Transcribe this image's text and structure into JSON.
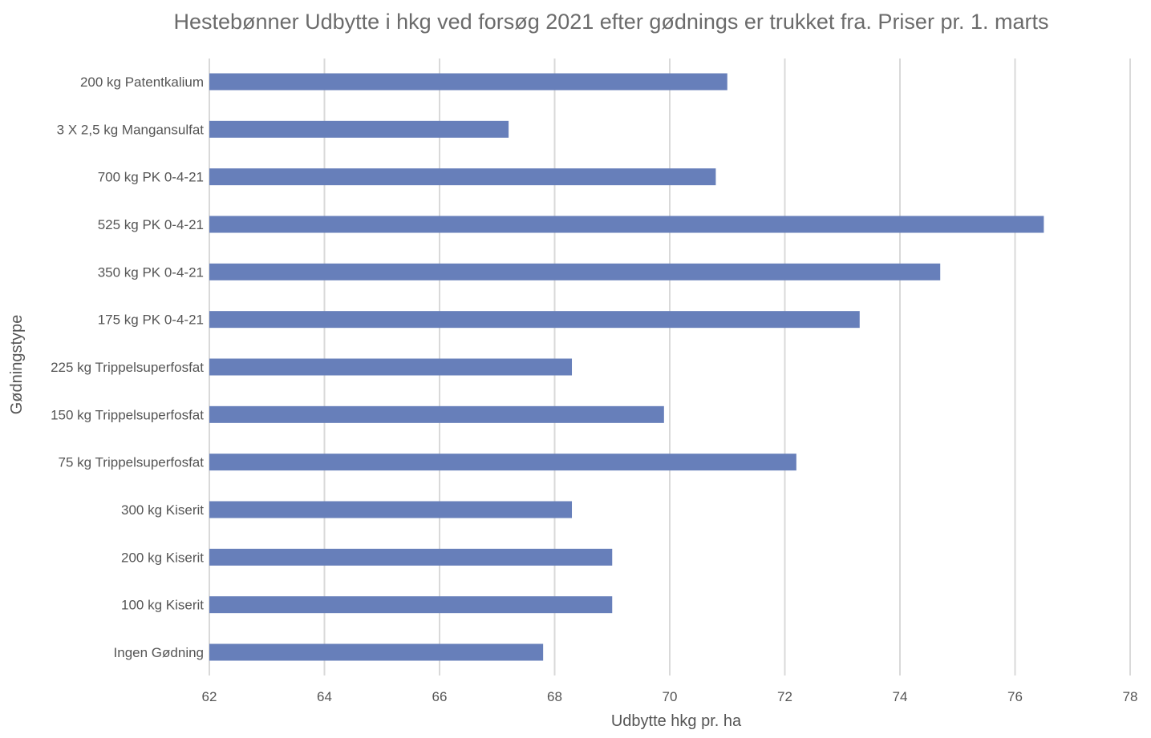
{
  "chart_data": {
    "type": "bar",
    "orientation": "horizontal",
    "title": "Hestebønner Udbytte i hkg ved forsøg 2021 efter gødnings er trukket fra. Priser pr. 1. marts",
    "xlabel": "Udbytte hkg pr. ha",
    "ylabel": "Gødningstype",
    "xlim": [
      62,
      78
    ],
    "xticks": [
      "62",
      "64",
      "66",
      "68",
      "70",
      "72",
      "74",
      "76",
      "78"
    ],
    "grid": "vertical",
    "bar_color": "#677fba",
    "categories": [
      "200 kg Patentkalium",
      "3 X 2,5 kg Mangansulfat",
      "700 kg PK 0-4-21",
      "525 kg PK 0-4-21",
      "350 kg PK 0-4-21",
      "175 kg PK 0-4-21",
      "225 kg Trippelsuperfosfat",
      "150 kg Trippelsuperfosfat",
      "75 kg Trippelsuperfosfat",
      "300 kg Kiserit",
      "200 kg Kiserit",
      "100 kg Kiserit",
      "Ingen Gødning"
    ],
    "values": [
      71.0,
      67.2,
      70.8,
      76.5,
      74.7,
      73.3,
      68.3,
      69.9,
      72.2,
      68.3,
      69.0,
      69.0,
      67.8
    ]
  }
}
